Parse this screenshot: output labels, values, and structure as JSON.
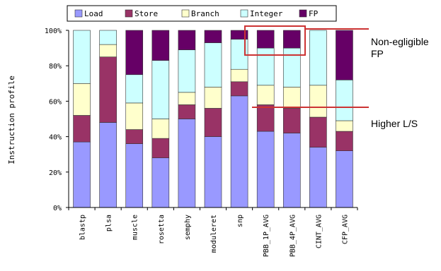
{
  "chart_data": {
    "type": "bar",
    "stacked": true,
    "categories": [
      "blastp",
      "plsa",
      "muscle",
      "rosetta",
      "semphy",
      "moduleret",
      "snp",
      "PBB_1P_AVG",
      "PBB_4P_AVG",
      "CINT_AVG",
      "CFP_AVG"
    ],
    "series": [
      {
        "name": "Load",
        "color": "#9999ff",
        "values": [
          37,
          48,
          36,
          28,
          50,
          40,
          63,
          43,
          42,
          34,
          32
        ]
      },
      {
        "name": "Store",
        "color": "#993366",
        "values": [
          15,
          37,
          8,
          11,
          8,
          16,
          8,
          15,
          14,
          17,
          11
        ]
      },
      {
        "name": "Branch",
        "color": "#ffffcc",
        "values": [
          18,
          7,
          15,
          11,
          7,
          12,
          7,
          11,
          12,
          18,
          6
        ]
      },
      {
        "name": "Integer",
        "color": "#ccffff",
        "values": [
          30,
          8,
          16,
          33,
          24,
          25,
          17,
          21,
          22,
          31,
          23
        ]
      },
      {
        "name": "FP",
        "color": "#660066",
        "values": [
          0,
          0,
          25,
          17,
          11,
          7,
          5,
          10,
          10,
          0,
          28
        ]
      }
    ],
    "ylabel": "Instruction profile",
    "ylim": [
      0,
      100
    ],
    "yticks": [
      "0%",
      "20%",
      "40%",
      "60%",
      "80%",
      "100%"
    ],
    "legend_position": "top",
    "annotations": [
      {
        "text_lines": [
          "Non-egligible",
          "FP"
        ]
      },
      {
        "text_lines": [
          "Higher L/S"
        ]
      }
    ]
  }
}
